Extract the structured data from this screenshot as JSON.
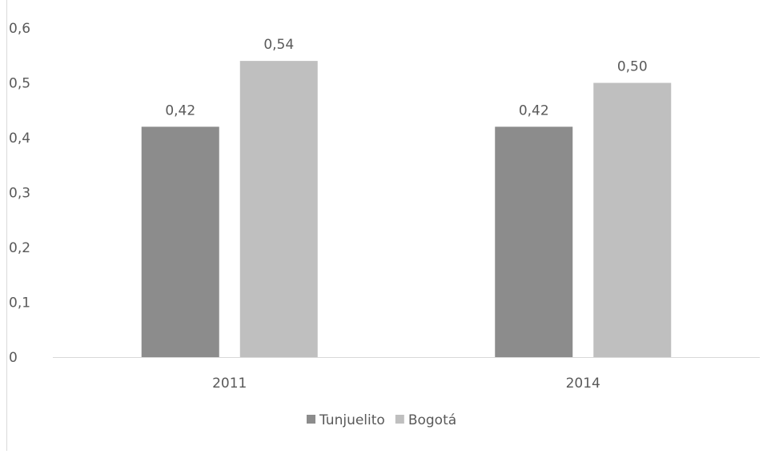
{
  "chart_data": {
    "type": "bar",
    "title": "",
    "xlabel": "",
    "ylabel": "",
    "categories": [
      "2011",
      "2014"
    ],
    "series": [
      {
        "name": "Tunjuelito",
        "values": [
          0.42,
          0.42
        ],
        "labels": [
          "0,42",
          "0,42"
        ],
        "color": "#8c8c8c"
      },
      {
        "name": "Bogotá",
        "values": [
          0.54,
          0.5
        ],
        "labels": [
          "0,54",
          "0,50"
        ],
        "color": "#bfbfbf"
      }
    ],
    "ylim": [
      0,
      0.6
    ],
    "yticks": [
      {
        "value": 0,
        "label": "0"
      },
      {
        "value": 0.1,
        "label": "0,1"
      },
      {
        "value": 0.2,
        "label": "0,2"
      },
      {
        "value": 0.3,
        "label": "0,3"
      },
      {
        "value": 0.4,
        "label": "0,4"
      },
      {
        "value": 0.5,
        "label": "0,5"
      },
      {
        "value": 0.6,
        "label": "0,6"
      }
    ],
    "grid": false,
    "legend": "bottom",
    "axis_color": "#d9d9d9"
  }
}
